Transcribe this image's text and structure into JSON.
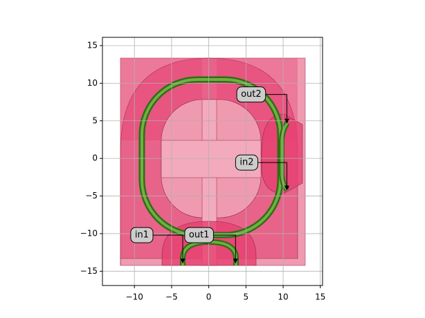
{
  "chart_data": {
    "type": "layout",
    "xlim": [
      -14.3,
      15.3
    ],
    "ylim": [
      -16.9,
      16.1
    ],
    "xticks": [
      {
        "value": -10,
        "label": "−10"
      },
      {
        "value": -5,
        "label": "−5"
      },
      0,
      5,
      10,
      15
    ],
    "yticks": [
      {
        "value": -15,
        "label": "−15"
      },
      {
        "value": -10,
        "label": "−10"
      },
      {
        "value": -5,
        "label": "−5"
      },
      0,
      5,
      10,
      15
    ],
    "grid": true,
    "annotations": [
      {
        "text": "in1",
        "x": -9,
        "y": -10.2,
        "target": [
          -3.5,
          -13.9
        ]
      },
      {
        "text": "out1",
        "x": -1.3,
        "y": -10.2,
        "target": [
          3.6,
          -13.9
        ]
      },
      {
        "text": "in2",
        "x": 5.1,
        "y": -0.55,
        "target": [
          10.5,
          -4.2
        ]
      },
      {
        "text": "out2",
        "x": 5.7,
        "y": 8.5,
        "target": [
          10.5,
          4.7
        ]
      }
    ]
  }
}
